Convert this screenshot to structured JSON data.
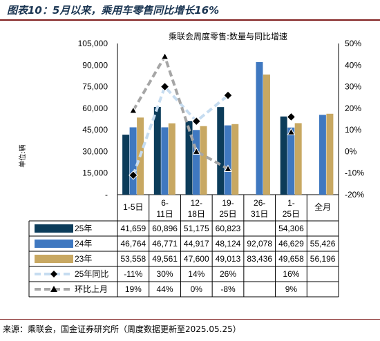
{
  "figure_title": "图表10：5月以来，乘用车零售同比增长16%",
  "source_note": "来源：乘联会，国金证券研究所（周度数据更新至2025.05.25）",
  "colors": {
    "s25": "#0c3c5a",
    "s24": "#3f78c0",
    "s23": "#c8a862",
    "yoy": "#c6dcf0",
    "wow": "#a6a6a6"
  },
  "chart_data": {
    "type": "bar",
    "title": "乘联会周度零售:数量与同比增速",
    "ylabel": "单位:辆",
    "ylim": [
      0,
      105000
    ],
    "y_ticks": [
      "-",
      "15,000",
      "30,000",
      "45,000",
      "60,000",
      "75,000",
      "90,000",
      "105,000"
    ],
    "y2lim": [
      -20,
      50
    ],
    "y2_ticks": [
      "-20%",
      "-10%",
      "0%",
      "10%",
      "20%",
      "30%",
      "40%",
      "50%"
    ],
    "categories": [
      "1-5日",
      "6-11日",
      "12-18日",
      "19-25日",
      "26-31日",
      "1-25日",
      "全月"
    ],
    "series": [
      {
        "name": "25年",
        "values": [
          41659,
          60896,
          51175,
          60823,
          null,
          54306,
          null
        ],
        "labels": [
          "41,659",
          "60,896",
          "51,175",
          "60,823",
          "",
          "54,306",
          ""
        ]
      },
      {
        "name": "24年",
        "values": [
          46764,
          46771,
          44917,
          48124,
          92078,
          46629,
          55426
        ],
        "labels": [
          "46,764",
          "46,771",
          "44,917",
          "48,124",
          "92,078",
          "46,629",
          "55,426"
        ]
      },
      {
        "name": "23年",
        "values": [
          53558,
          49561,
          47600,
          49013,
          83436,
          49658,
          56196
        ],
        "labels": [
          "53,558",
          "49,561",
          "47,600",
          "49,013",
          "83,436",
          "49,658",
          "56,196"
        ]
      }
    ],
    "lines": [
      {
        "name": "25年同比",
        "values": [
          -11,
          30,
          14,
          26,
          null,
          16,
          null
        ],
        "labels": [
          "-11%",
          "30%",
          "14%",
          "26%",
          "",
          "16%",
          ""
        ]
      },
      {
        "name": "环比上月",
        "values": [
          19,
          44,
          0,
          -8,
          null,
          9,
          null
        ],
        "labels": [
          "19%",
          "44%",
          "0%",
          "-8%",
          "",
          "9%",
          ""
        ]
      }
    ]
  }
}
